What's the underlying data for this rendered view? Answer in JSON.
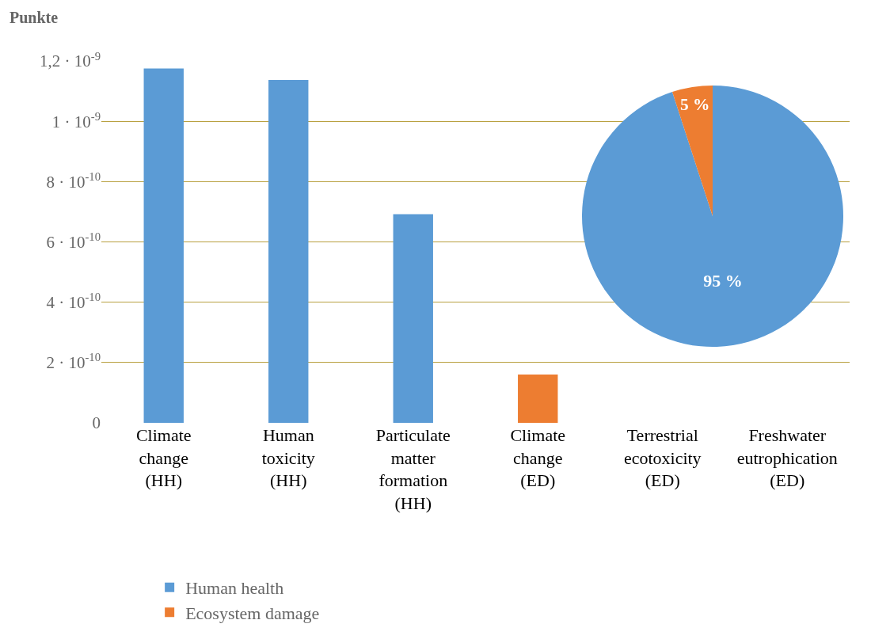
{
  "chart_data": [
    {
      "type": "bar",
      "ylabel": "Punkte",
      "categories": [
        "Climate change (HH)",
        "Human toxicity (HH)",
        "Particulate matter formation (HH)",
        "Climate change (ED)",
        "Terrestrial ecotoxicity (ED)",
        "Freshwater eutrophication (ED)"
      ],
      "series": [
        {
          "name": "Human health",
          "color": "#5b9bd5",
          "values": [
            1.175e-09,
            1.137e-09,
            6.92e-10,
            null,
            null,
            null
          ]
        },
        {
          "name": "Ecosystem damage",
          "color": "#ed7d31",
          "values": [
            null,
            null,
            null,
            1.6e-10,
            0,
            0
          ]
        }
      ],
      "ylim": [
        0,
        1.2e-09
      ],
      "yticks": [
        0,
        {
          "value": 2e-10,
          "label": "2 · 10$^{-10}$"
        },
        {
          "value": 4e-10,
          "label": "4 · 10$^{-10}$"
        },
        {
          "value": 6e-10,
          "label": "6 · 10$^{-10}$"
        },
        {
          "value": 8e-10,
          "label": "8 · 10$^{-10}$"
        },
        {
          "value": 1e-09,
          "label": "1 · 10$^{-9}$"
        },
        {
          "value": 1.2e-09,
          "label": "1,2 · 10$^{-9}$"
        }
      ],
      "grid": "y",
      "legend": "bottom"
    },
    {
      "type": "pie",
      "values": [
        95,
        5
      ],
      "colors": [
        "#5b9bd5",
        "#ed7d31"
      ],
      "value_labels": [
        "95 %",
        "5 %"
      ]
    }
  ]
}
